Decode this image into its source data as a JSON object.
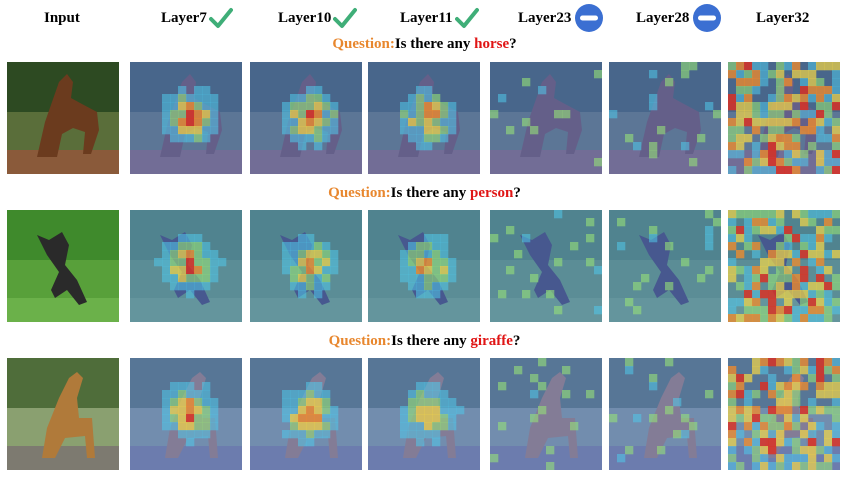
{
  "columns": [
    {
      "label": "Input",
      "status": "none"
    },
    {
      "label": "Layer7",
      "status": "check"
    },
    {
      "label": "Layer10",
      "status": "check"
    },
    {
      "label": "Layer11",
      "status": "check"
    },
    {
      "label": "Layer23",
      "status": "minus"
    },
    {
      "label": "Layer28",
      "status": "minus"
    },
    {
      "label": "Layer32",
      "status": "none"
    }
  ],
  "rows": [
    {
      "question_label": "Question:",
      "question_text": "Is there any ",
      "object": "horse",
      "suffix": "?"
    },
    {
      "question_label": "Question:",
      "question_text": "Is there any ",
      "object": "person",
      "suffix": "?"
    },
    {
      "question_label": "Question:",
      "question_text": "Is there any ",
      "object": "giraffe",
      "suffix": "?"
    }
  ],
  "colors": {
    "check": "#3fae78",
    "minus": "#3b6fd2",
    "question_label": "#e8872e",
    "object": "#e01515"
  }
}
